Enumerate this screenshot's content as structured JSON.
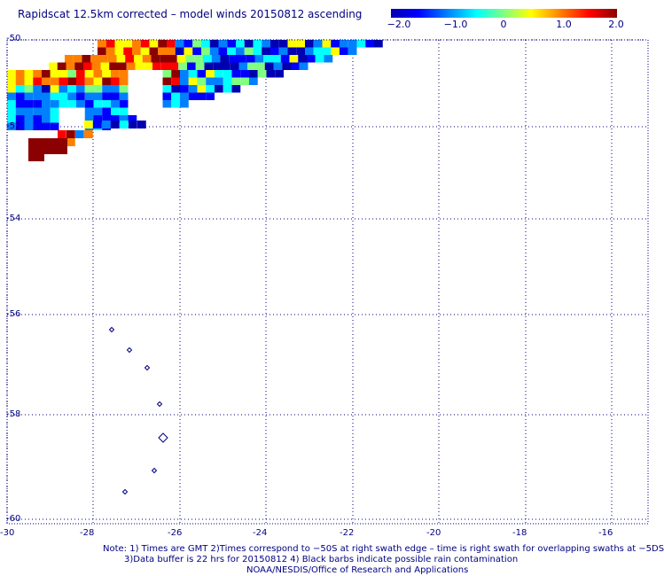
{
  "title": "Rapidscat 12.5km corrected – model winds 20150812 ascending",
  "colorbar": {
    "ticks": [
      "−2.0",
      "−1.0",
      "0",
      "1.0",
      "2.0"
    ],
    "colors": [
      "#0000b0",
      "#0000ff",
      "#0080ff",
      "#00ffff",
      "#80ff80",
      "#ffff00",
      "#ff8000",
      "#ff0000",
      "#8b0000"
    ]
  },
  "axes": {
    "lat_labels": [
      "-50",
      "-52",
      "-54",
      "-56",
      "-58",
      "-60"
    ],
    "lon_labels": [
      "-30",
      "-28",
      "-26",
      "-24",
      "-22",
      "-20",
      "-18",
      "-16"
    ]
  },
  "notes": {
    "line1": "Note: 1) Times are GMT 2)Times correspond to −50S at right swath edge – time is right swath for overlapping swaths at −5DS",
    "line2": "3)Data buffer is 22 hrs for 20150812 4) Black barbs indicate possible rain contamination",
    "line3": "NOAA/NESDIS/Office of Research and Applications"
  },
  "map_data": {
    "lon_range": [
      -30,
      -15
    ],
    "lat_range": [
      -60,
      -50
    ],
    "value_range": [
      -2.0,
      2.0
    ],
    "cell_deg": 0.2
  }
}
